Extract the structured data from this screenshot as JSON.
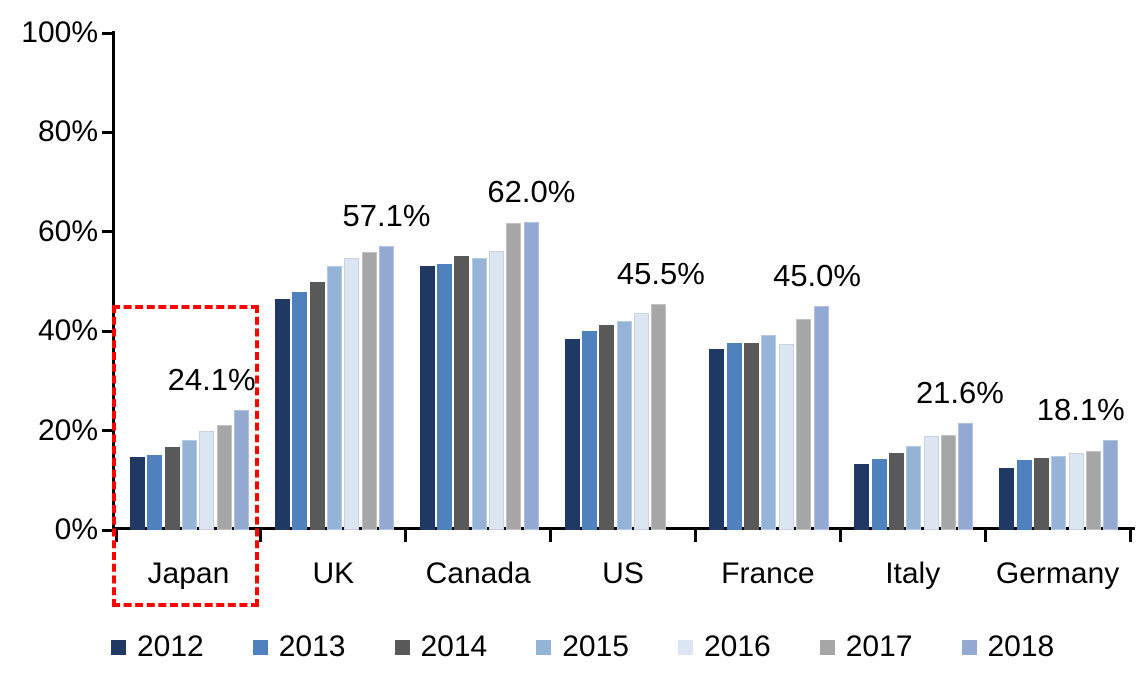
{
  "chart_data": {
    "type": "bar",
    "title": "",
    "xlabel": "",
    "ylabel": "",
    "categories": [
      "Japan",
      "UK",
      "Canada",
      "US",
      "France",
      "Italy",
      "Germany"
    ],
    "series": [
      {
        "name": "2012",
        "color": "#1F3864",
        "border": null,
        "values": [
          14.7,
          46.5,
          53.1,
          38.4,
          36.4,
          13.3,
          12.5
        ]
      },
      {
        "name": "2013",
        "color": "#4E81BD",
        "border": null,
        "values": [
          15.0,
          47.8,
          53.5,
          40.1,
          37.7,
          14.2,
          14.0
        ]
      },
      {
        "name": "2014",
        "color": "#595959",
        "border": null,
        "values": [
          16.6,
          49.9,
          55.2,
          41.2,
          37.7,
          15.4,
          14.4
        ]
      },
      {
        "name": "2015",
        "color": "#95B3D7",
        "border": "#B6CAE4",
        "values": [
          18.1,
          53.1,
          54.8,
          42.1,
          39.3,
          16.9,
          14.9
        ]
      },
      {
        "name": "2016",
        "color": "#DCE6F2",
        "border": "#C8D2E0",
        "values": [
          20.0,
          54.8,
          56.2,
          43.7,
          37.4,
          18.9,
          15.5
        ]
      },
      {
        "name": "2017",
        "color": "#A6A6A6",
        "border": "#C2C2C2",
        "values": [
          21.1,
          55.9,
          61.7,
          45.5,
          42.4,
          19.2,
          15.9
        ]
      },
      {
        "name": "2018",
        "color": "#93A9D2",
        "border": "#B2C1E0",
        "values": [
          24.1,
          57.1,
          62.0,
          null,
          45.0,
          21.6,
          18.1
        ]
      }
    ],
    "data_labels": [
      {
        "category": "Japan",
        "text": "24.1%",
        "dx": -30
      },
      {
        "category": "UK",
        "text": "57.1%",
        "dx": 0
      },
      {
        "category": "Canada",
        "text": "62.0%",
        "dx": 0
      },
      {
        "category": "US",
        "text": "45.5%",
        "dx": 2
      },
      {
        "category": "France",
        "text": "45.0%",
        "dx": -4
      },
      {
        "category": "Italy",
        "text": "21.6%",
        "dx": -6
      },
      {
        "category": "Germany",
        "text": "18.1%",
        "dx": -30
      }
    ],
    "y_ticks": [
      "0%",
      "20%",
      "40%",
      "60%",
      "80%",
      "100%"
    ],
    "ylim": [
      0,
      100
    ],
    "grid": false,
    "legend_position": "bottom",
    "legend_entries": [
      "2012",
      "2013",
      "2014",
      "2015",
      "2016",
      "2017",
      "2018"
    ],
    "annotation": {
      "shape": "dashed-rectangle",
      "color": "#FF0000",
      "around_category": "Japan"
    }
  }
}
